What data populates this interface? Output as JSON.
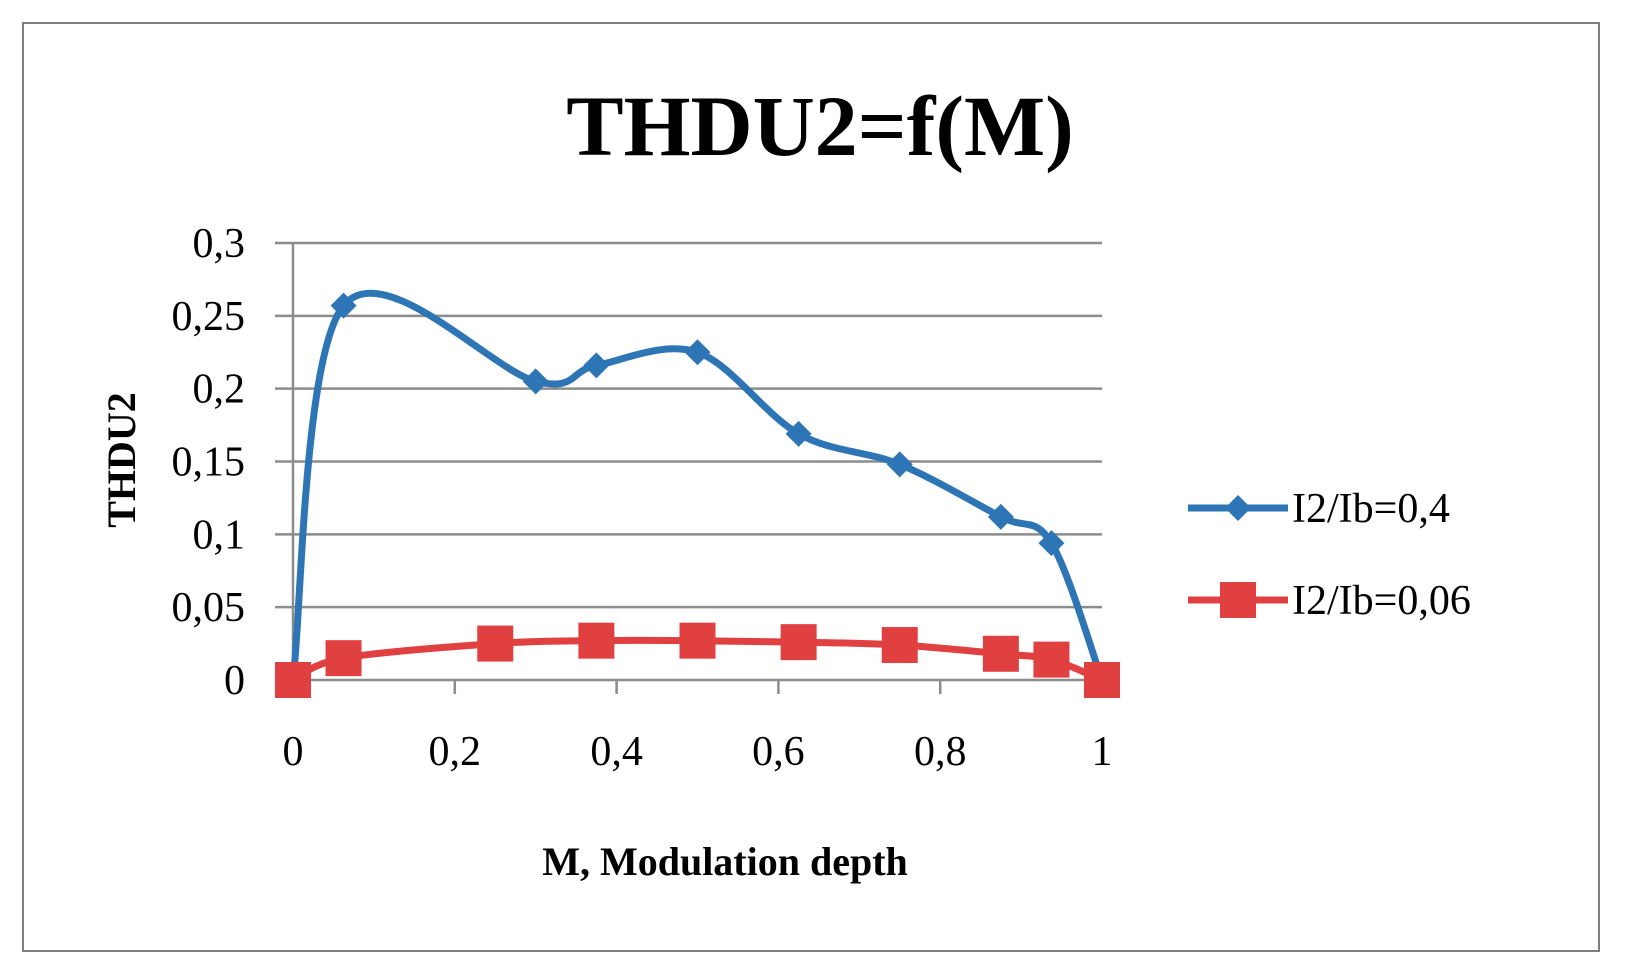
{
  "chart_data": {
    "type": "line",
    "title": "THDU2=f(M)",
    "xlabel": "M, Modulation depth",
    "ylabel": "THDU2",
    "xlim": [
      0,
      1
    ],
    "ylim": [
      0,
      0.3
    ],
    "x_ticks": [
      "0",
      "0,2",
      "0,4",
      "0,6",
      "0,8",
      "1"
    ],
    "y_ticks": [
      "0",
      "0,05",
      "0,1",
      "0,15",
      "0,2",
      "0,25",
      "0,3"
    ],
    "grid": "horizontal",
    "legend_position": "right",
    "series": [
      {
        "name": "I2/Ib=0,4",
        "color": "#2e75b6",
        "marker": "diamond",
        "x": [
          0,
          0.0625,
          0.3,
          0.375,
          0.5,
          0.625,
          0.75,
          0.875,
          0.9375,
          1
        ],
        "y": [
          0,
          0.257,
          0.205,
          0.216,
          0.225,
          0.169,
          0.148,
          0.112,
          0.094,
          0
        ]
      },
      {
        "name": "I2/Ib=0,06",
        "color": "#e04040",
        "marker": "square",
        "x": [
          0,
          0.0625,
          0.25,
          0.375,
          0.5,
          0.625,
          0.75,
          0.875,
          0.9375,
          1
        ],
        "y": [
          0,
          0.015,
          0.025,
          0.027,
          0.027,
          0.026,
          0.024,
          0.018,
          0.014,
          0
        ]
      }
    ]
  }
}
